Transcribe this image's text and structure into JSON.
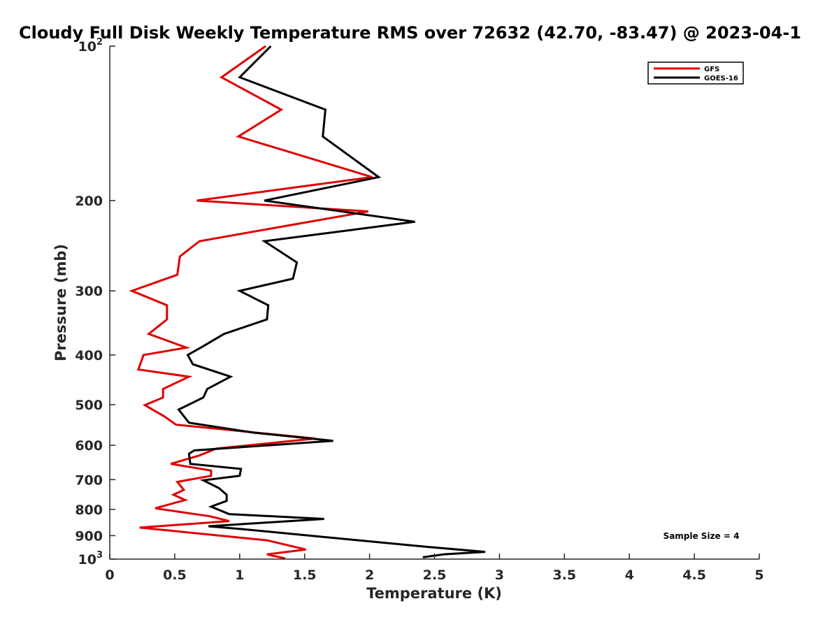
{
  "chart_data": {
    "type": "line",
    "title": "Cloudy Full Disk Weekly Temperature RMS over 72632 (42.70, -83.47) @ 2023-04-1",
    "xlabel": "Temperature (K)",
    "ylabel": "Pressure (mb)",
    "xlim": [
      0,
      5
    ],
    "ylim": [
      100,
      1000
    ],
    "y_scale": "log",
    "y_reversed": true,
    "grid": false,
    "legend_position": "top-right",
    "x_ticks": [
      "0",
      "0.5",
      "1",
      "1.5",
      "2",
      "2.5",
      "3",
      "3.5",
      "4",
      "4.5",
      "5"
    ],
    "y_ticks": [
      {
        "base": "10",
        "exp": "2",
        "value": 100
      },
      {
        "base": "200",
        "exp": "",
        "value": 200
      },
      {
        "base": "300",
        "exp": "",
        "value": 300
      },
      {
        "base": "400",
        "exp": "",
        "value": 400
      },
      {
        "base": "500",
        "exp": "",
        "value": 500
      },
      {
        "base": "600",
        "exp": "",
        "value": 600
      },
      {
        "base": "700",
        "exp": "",
        "value": 700
      },
      {
        "base": "800",
        "exp": "",
        "value": 800
      },
      {
        "base": "900",
        "exp": "",
        "value": 900
      },
      {
        "base": "10",
        "exp": "3",
        "value": 1000
      }
    ],
    "annotation": "Sample Size = 4",
    "series": [
      {
        "name": "GFS",
        "color": "#e00000",
        "points": [
          [
            1.2,
            100
          ],
          [
            0.86,
            115
          ],
          [
            1.32,
            133
          ],
          [
            0.99,
            150
          ],
          [
            2.02,
            180
          ],
          [
            0.67,
            200
          ],
          [
            1.99,
            210
          ],
          [
            0.69,
            240
          ],
          [
            0.54,
            257
          ],
          [
            0.52,
            279
          ],
          [
            0.17,
            300
          ],
          [
            0.44,
            320
          ],
          [
            0.44,
            341
          ],
          [
            0.3,
            364
          ],
          [
            0.59,
            387
          ],
          [
            0.26,
            400
          ],
          [
            0.22,
            427
          ],
          [
            0.61,
            441
          ],
          [
            0.41,
            466
          ],
          [
            0.41,
            484
          ],
          [
            0.27,
            501
          ],
          [
            0.42,
            527
          ],
          [
            0.51,
            547
          ],
          [
            1.58,
            582
          ],
          [
            0.82,
            609
          ],
          [
            0.69,
            628
          ],
          [
            0.47,
            652
          ],
          [
            0.78,
            672
          ],
          [
            0.78,
            688
          ],
          [
            0.52,
            707
          ],
          [
            0.57,
            733
          ],
          [
            0.49,
            749
          ],
          [
            0.58,
            767
          ],
          [
            0.35,
            796
          ],
          [
            0.77,
            825
          ],
          [
            0.92,
            843
          ],
          [
            0.23,
            868
          ],
          [
            1.21,
            919
          ],
          [
            1.51,
            958
          ],
          [
            1.21,
            979
          ],
          [
            1.35,
            997
          ]
        ]
      },
      {
        "name": "GOES-16",
        "color": "#000000",
        "points": [
          [
            1.24,
            100
          ],
          [
            1.0,
            115
          ],
          [
            1.66,
            133
          ],
          [
            1.64,
            150
          ],
          [
            2.07,
            180
          ],
          [
            1.19,
            200
          ],
          [
            2.35,
            220
          ],
          [
            1.19,
            240
          ],
          [
            1.44,
            264
          ],
          [
            1.41,
            284
          ],
          [
            1.0,
            300
          ],
          [
            1.22,
            320
          ],
          [
            1.21,
            341
          ],
          [
            0.88,
            364
          ],
          [
            0.7,
            387
          ],
          [
            0.6,
            400
          ],
          [
            0.64,
            417
          ],
          [
            0.93,
            441
          ],
          [
            0.75,
            466
          ],
          [
            0.72,
            484
          ],
          [
            0.53,
            511
          ],
          [
            0.61,
            542
          ],
          [
            1.11,
            567
          ],
          [
            1.72,
            588
          ],
          [
            0.65,
            614
          ],
          [
            0.61,
            623
          ],
          [
            0.62,
            652
          ],
          [
            1.01,
            667
          ],
          [
            1.0,
            688
          ],
          [
            0.72,
            702
          ],
          [
            0.84,
            727
          ],
          [
            0.9,
            749
          ],
          [
            0.9,
            770
          ],
          [
            0.78,
            790
          ],
          [
            0.92,
            817
          ],
          [
            1.65,
            835
          ],
          [
            0.76,
            863
          ],
          [
            1.02,
            874
          ],
          [
            2.43,
            946
          ],
          [
            2.89,
            968
          ],
          [
            2.57,
            979
          ],
          [
            2.41,
            992
          ]
        ]
      }
    ]
  }
}
